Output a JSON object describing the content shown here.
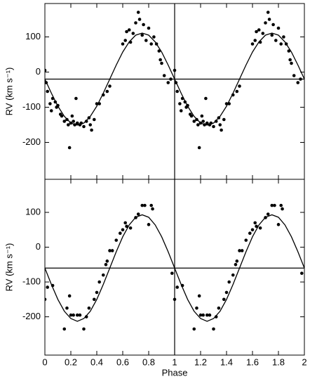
{
  "chart_data": [
    {
      "type": "scatter",
      "ylabel": "RV (km s⁻¹)",
      "xlim": [
        0,
        2
      ],
      "xticks": [
        0,
        0.2,
        0.4,
        0.6,
        0.8,
        1,
        1.2,
        1.4,
        1.6,
        1.8,
        2
      ],
      "xtick_labels": false,
      "ylim": [
        -305,
        195
      ],
      "yticks": [
        -200,
        -100,
        0,
        100
      ],
      "hline": -20,
      "vline": 1,
      "series": [
        {
          "mode": "markers",
          "color": "#000000",
          "x": [
            0.0,
            0.01,
            0.02,
            0.04,
            0.05,
            0.06,
            0.08,
            0.09,
            0.1,
            0.12,
            0.13,
            0.15,
            0.17,
            0.18,
            0.19,
            0.2,
            0.21,
            0.22,
            0.23,
            0.24,
            0.25,
            0.27,
            0.28,
            0.3,
            0.32,
            0.34,
            0.35,
            0.36,
            0.38,
            0.4,
            0.42,
            0.45,
            0.48,
            0.5,
            0.6,
            0.62,
            0.63,
            0.65,
            0.66,
            0.68,
            0.7,
            0.72,
            0.73,
            0.75,
            0.76,
            0.78,
            0.8,
            0.82,
            0.84,
            0.86,
            0.88,
            0.89,
            0.9,
            0.92,
            0.95,
            0.97,
            1.0,
            1.01,
            1.02,
            1.04,
            1.05,
            1.06,
            1.08,
            1.09,
            1.1,
            1.12,
            1.13,
            1.15,
            1.17,
            1.18,
            1.19,
            1.2,
            1.21,
            1.22,
            1.23,
            1.24,
            1.25,
            1.27,
            1.28,
            1.3,
            1.32,
            1.34,
            1.35,
            1.36,
            1.38,
            1.4,
            1.42,
            1.45,
            1.48,
            1.5,
            1.6,
            1.62,
            1.63,
            1.65,
            1.66,
            1.68,
            1.7,
            1.72,
            1.73,
            1.75,
            1.76,
            1.78,
            1.8,
            1.82,
            1.84,
            1.86,
            1.88,
            1.89,
            1.9,
            1.92,
            1.95,
            1.97
          ],
          "values": [
            5,
            -30,
            -55,
            -90,
            -110,
            -75,
            -85,
            -100,
            -95,
            -120,
            -125,
            -140,
            -135,
            -150,
            -215,
            -145,
            -125,
            -140,
            -150,
            -75,
            -145,
            -150,
            -145,
            -155,
            -140,
            -130,
            -150,
            -165,
            -135,
            -90,
            -90,
            -65,
            -55,
            -40,
            80,
            90,
            115,
            120,
            85,
            110,
            140,
            170,
            150,
            105,
            135,
            90,
            125,
            80,
            100,
            80,
            60,
            35,
            25,
            -10,
            -30,
            -20,
            5,
            -30,
            -55,
            -90,
            -110,
            -75,
            -85,
            -100,
            -95,
            -120,
            -125,
            -140,
            -135,
            -150,
            -215,
            -145,
            -125,
            -140,
            -150,
            -75,
            -145,
            -150,
            -145,
            -155,
            -140,
            -130,
            -150,
            -165,
            -135,
            -90,
            -90,
            -65,
            -55,
            -40,
            80,
            90,
            115,
            120,
            85,
            110,
            140,
            170,
            150,
            105,
            135,
            90,
            125,
            80,
            100,
            80,
            60,
            35,
            25,
            -10,
            -30,
            -20
          ]
        },
        {
          "mode": "line",
          "color": "#000000",
          "x": [
            0,
            0.05,
            0.1,
            0.15,
            0.2,
            0.25,
            0.3,
            0.35,
            0.4,
            0.45,
            0.5,
            0.55,
            0.6,
            0.65,
            0.7,
            0.75,
            0.8,
            0.85,
            0.9,
            0.95,
            1,
            1.05,
            1.1,
            1.15,
            1.2,
            1.25,
            1.3,
            1.35,
            1.4,
            1.45,
            1.5,
            1.55,
            1.6,
            1.65,
            1.7,
            1.75,
            1.8,
            1.85,
            1.9,
            1.95,
            2
          ],
          "values": [
            -20,
            -60,
            -97,
            -126,
            -145,
            -151,
            -145,
            -126,
            -97,
            -60,
            -20,
            20,
            57,
            86,
            105,
            111,
            105,
            86,
            57,
            20,
            -20,
            -60,
            -97,
            -126,
            -145,
            -151,
            -145,
            -126,
            -97,
            -60,
            -20,
            20,
            57,
            86,
            105,
            111,
            105,
            86,
            57,
            20,
            -20
          ]
        }
      ]
    },
    {
      "type": "scatter",
      "ylabel": "RV (km s⁻¹)",
      "xlabel": "Phase",
      "xlim": [
        0,
        2
      ],
      "xticks": [
        0,
        0.2,
        0.4,
        0.6,
        0.8,
        1,
        1.2,
        1.4,
        1.6,
        1.8,
        2
      ],
      "xtick_labels": true,
      "ylim": [
        -310,
        195
      ],
      "yticks": [
        -200,
        -100,
        0,
        100
      ],
      "hline": -60,
      "vline": 1,
      "series": [
        {
          "mode": "markers",
          "color": "#000000",
          "x": [
            0.0,
            0.02,
            0.06,
            0.15,
            0.17,
            0.19,
            0.2,
            0.22,
            0.25,
            0.27,
            0.3,
            0.32,
            0.34,
            0.38,
            0.4,
            0.42,
            0.45,
            0.47,
            0.48,
            0.5,
            0.52,
            0.55,
            0.58,
            0.6,
            0.62,
            0.63,
            0.66,
            0.7,
            0.72,
            0.75,
            0.77,
            0.8,
            0.82,
            0.83,
            0.98,
            1.0,
            1.02,
            1.06,
            1.15,
            1.17,
            1.19,
            1.2,
            1.22,
            1.25,
            1.27,
            1.3,
            1.32,
            1.34,
            1.38,
            1.4,
            1.42,
            1.45,
            1.47,
            1.48,
            1.5,
            1.52,
            1.55,
            1.58,
            1.6,
            1.62,
            1.63,
            1.66,
            1.7,
            1.72,
            1.75,
            1.77,
            1.8,
            1.82,
            1.83,
            1.98
          ],
          "values": [
            -150,
            -115,
            -110,
            -235,
            -175,
            -140,
            -195,
            -195,
            -195,
            -195,
            -235,
            -200,
            -175,
            -150,
            -130,
            -100,
            -80,
            -50,
            -40,
            -10,
            -10,
            20,
            40,
            50,
            70,
            60,
            55,
            85,
            95,
            120,
            120,
            65,
            120,
            110,
            -75,
            -150,
            -115,
            -110,
            -235,
            -175,
            -140,
            -195,
            -195,
            -195,
            -195,
            -235,
            -200,
            -175,
            -150,
            -130,
            -100,
            -80,
            -50,
            -40,
            -10,
            -10,
            20,
            40,
            50,
            70,
            60,
            55,
            85,
            95,
            120,
            120,
            65,
            120,
            110,
            -75
          ]
        },
        {
          "mode": "line",
          "color": "#000000",
          "x": [
            0,
            0.05,
            0.1,
            0.15,
            0.2,
            0.25,
            0.3,
            0.35,
            0.4,
            0.45,
            0.5,
            0.55,
            0.6,
            0.65,
            0.7,
            0.75,
            0.8,
            0.85,
            0.9,
            0.95,
            1,
            1.05,
            1.1,
            1.15,
            1.2,
            1.25,
            1.3,
            1.35,
            1.4,
            1.45,
            1.5,
            1.55,
            1.6,
            1.65,
            1.7,
            1.75,
            1.8,
            1.85,
            1.9,
            1.95,
            2
          ],
          "values": [
            -60,
            -107,
            -150,
            -184,
            -205,
            -213,
            -205,
            -184,
            -150,
            -107,
            -60,
            -13,
            30,
            64,
            86,
            93,
            86,
            64,
            30,
            -13,
            -60,
            -107,
            -150,
            -184,
            -205,
            -213,
            -205,
            -184,
            -150,
            -107,
            -60,
            -13,
            30,
            64,
            86,
            93,
            86,
            64,
            30,
            -13,
            -60
          ]
        }
      ]
    }
  ]
}
